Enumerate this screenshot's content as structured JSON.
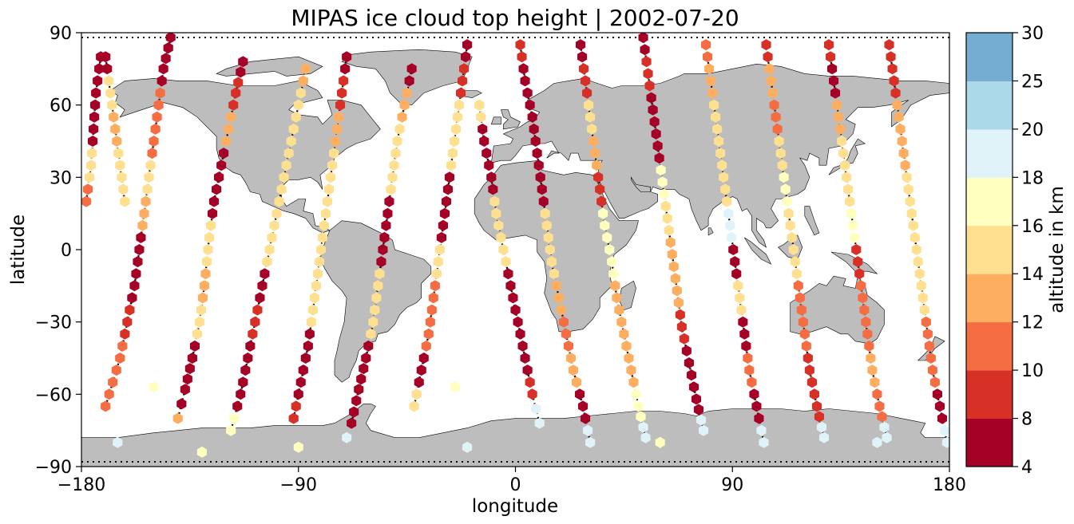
{
  "chart_data": {
    "type": "scatter",
    "title": "MIPAS ice cloud top height | 2002-07-20",
    "xlabel": "longitude",
    "ylabel": "latitude",
    "xlim": [
      -180,
      180
    ],
    "ylim": [
      -90,
      90
    ],
    "xticks": [
      "−180",
      "−90",
      "0",
      "90",
      "180"
    ],
    "yticks": [
      "90",
      "60",
      "30",
      "0",
      "−30",
      "−60",
      "−90"
    ],
    "grid": false,
    "marker": "hexagon",
    "colorbar": {
      "label": "altitude in km",
      "bounds": [
        4,
        8,
        10,
        12,
        14,
        16,
        18,
        20,
        25,
        30
      ],
      "tick_labels": [
        "4",
        "8",
        "10",
        "12",
        "14",
        "16",
        "18",
        "20",
        "25",
        "30"
      ],
      "colors": [
        "#a50026",
        "#d73027",
        "#f46d43",
        "#fdae61",
        "#fee090",
        "#ffffbf",
        "#e0f3f8",
        "#abd9e9",
        "#74add1",
        "#4575b4",
        "#313695"
      ]
    },
    "land_color": "#bdbdbd",
    "ground_track_color": "#000000",
    "tracks": [
      {
        "ascending": true,
        "points": [
          [
            -170,
            -65,
            11
          ],
          [
            -167,
            -55,
            11
          ],
          [
            -164,
            -45,
            11
          ],
          [
            -161,
            -30,
            9
          ],
          [
            -158,
            -15,
            7
          ],
          [
            -156,
            0,
            7
          ],
          [
            -154,
            15,
            13
          ],
          [
            -152,
            30,
            14
          ],
          [
            -150,
            45,
            11
          ],
          [
            -148,
            60,
            11
          ],
          [
            -146,
            75,
            7
          ],
          [
            -143,
            88,
            7
          ]
        ]
      },
      {
        "ascending": true,
        "points": [
          [
            -140,
            -70,
            13
          ],
          [
            -137,
            -58,
            7
          ],
          [
            -134,
            -45,
            7
          ],
          [
            -131,
            -30,
            14
          ],
          [
            -129,
            -15,
            13
          ],
          [
            -127,
            5,
            15
          ],
          [
            -125,
            20,
            7
          ],
          [
            -122,
            35,
            7
          ],
          [
            -119,
            50,
            12
          ],
          [
            -116,
            65,
            9
          ],
          [
            -113,
            78,
            7
          ]
        ]
      },
      {
        "ascending": true,
        "points": [
          [
            -118,
            -75,
            17
          ],
          [
            -114,
            -60,
            7
          ],
          [
            -111,
            -45,
            7
          ],
          [
            -108,
            -30,
            8
          ],
          [
            -105,
            -15,
            7
          ],
          [
            -102,
            0,
            15
          ],
          [
            -99,
            15,
            15
          ],
          [
            -96,
            30,
            14
          ],
          [
            -93,
            45,
            15
          ],
          [
            -90,
            60,
            14
          ],
          [
            -87,
            75,
            13
          ]
        ]
      },
      {
        "ascending": true,
        "points": [
          [
            -92,
            -70,
            9
          ],
          [
            -89,
            -55,
            7
          ],
          [
            -86,
            -40,
            7
          ],
          [
            -84,
            -25,
            15
          ],
          [
            -82,
            -10,
            15
          ],
          [
            -80,
            5,
            14
          ],
          [
            -78,
            20,
            15
          ],
          [
            -76,
            35,
            15
          ],
          [
            -74,
            50,
            13
          ],
          [
            -72,
            65,
            9
          ],
          [
            -70,
            80,
            7
          ]
        ]
      },
      {
        "ascending": true,
        "points": [
          [
            -68,
            -72,
            7
          ],
          [
            -65,
            -58,
            7
          ],
          [
            -62,
            -45,
            7
          ],
          [
            -59,
            -30,
            15
          ],
          [
            -57,
            -15,
            15
          ],
          [
            -55,
            0,
            7
          ],
          [
            -53,
            15,
            7
          ],
          [
            -51,
            30,
            14
          ],
          [
            -49,
            45,
            15
          ],
          [
            -46,
            60,
            12
          ],
          [
            -43,
            75,
            7
          ]
        ]
      },
      {
        "ascending": true,
        "points": [
          [
            -42,
            -65,
            14
          ],
          [
            -39,
            -50,
            7
          ],
          [
            -36,
            -35,
            11
          ],
          [
            -34,
            -20,
            11
          ],
          [
            -32,
            -5,
            14
          ],
          [
            -30,
            10,
            7
          ],
          [
            -28,
            25,
            7
          ],
          [
            -26,
            40,
            14
          ],
          [
            -24,
            55,
            15
          ],
          [
            -22,
            70,
            9
          ],
          [
            -20,
            85,
            7
          ]
        ]
      },
      {
        "ascending": false,
        "points": [
          [
            -15,
            60,
            15
          ],
          [
            -13,
            45,
            7
          ],
          [
            -10,
            30,
            7
          ],
          [
            -8,
            15,
            15
          ],
          [
            -5,
            0,
            14
          ],
          [
            -2,
            -15,
            7
          ],
          [
            1,
            -30,
            7
          ],
          [
            4,
            -45,
            7
          ],
          [
            7,
            -60,
            9
          ],
          [
            10,
            -72,
            18
          ]
        ]
      },
      {
        "ascending": false,
        "points": [
          [
            2,
            85,
            9
          ],
          [
            4,
            70,
            7
          ],
          [
            7,
            55,
            7
          ],
          [
            9,
            40,
            7
          ],
          [
            11,
            25,
            7
          ],
          [
            13,
            10,
            15
          ],
          [
            15,
            -5,
            15
          ],
          [
            18,
            -20,
            13
          ],
          [
            21,
            -35,
            11
          ],
          [
            24,
            -50,
            12
          ],
          [
            28,
            -65,
            7
          ],
          [
            31,
            -80,
            18
          ]
        ]
      },
      {
        "ascending": false,
        "points": [
          [
            27,
            85,
            7
          ],
          [
            29,
            70,
            9
          ],
          [
            31,
            55,
            14
          ],
          [
            33,
            40,
            13
          ],
          [
            35,
            25,
            9
          ],
          [
            37,
            10,
            17
          ],
          [
            40,
            -5,
            17
          ],
          [
            42,
            -20,
            12
          ],
          [
            45,
            -35,
            13
          ],
          [
            48,
            -50,
            13
          ],
          [
            51,
            -65,
            16
          ],
          [
            54,
            -78,
            18
          ]
        ]
      },
      {
        "ascending": false,
        "points": [
          [
            53,
            88,
            7
          ],
          [
            55,
            73,
            9
          ],
          [
            57,
            58,
            7
          ],
          [
            59,
            43,
            7
          ],
          [
            61,
            28,
            16
          ],
          [
            63,
            13,
            15
          ],
          [
            65,
            -2,
            12
          ],
          [
            67,
            -17,
            13
          ],
          [
            69,
            -32,
            9
          ],
          [
            72,
            -47,
            7
          ],
          [
            75,
            -62,
            7
          ],
          [
            78,
            -75,
            18
          ]
        ]
      },
      {
        "ascending": false,
        "points": [
          [
            79,
            85,
            11
          ],
          [
            81,
            70,
            12
          ],
          [
            83,
            55,
            14
          ],
          [
            85,
            40,
            14
          ],
          [
            87,
            25,
            15
          ],
          [
            89,
            10,
            18
          ],
          [
            91,
            -5,
            7
          ],
          [
            93,
            -20,
            15
          ],
          [
            95,
            -35,
            7
          ],
          [
            97,
            -50,
            11
          ],
          [
            100,
            -65,
            7
          ],
          [
            103,
            -80,
            18
          ]
        ]
      },
      {
        "ascending": false,
        "points": [
          [
            104,
            85,
            9
          ],
          [
            106,
            70,
            12
          ],
          [
            108,
            55,
            11
          ],
          [
            110,
            40,
            15
          ],
          [
            112,
            25,
            16
          ],
          [
            114,
            10,
            15
          ],
          [
            116,
            -5,
            14
          ],
          [
            118,
            -20,
            11
          ],
          [
            120,
            -35,
            11
          ],
          [
            122,
            -50,
            9
          ],
          [
            125,
            -65,
            9
          ],
          [
            128,
            -78,
            18
          ]
        ]
      },
      {
        "ascending": false,
        "points": [
          [
            130,
            85,
            8
          ],
          [
            132,
            70,
            7
          ],
          [
            134,
            55,
            13
          ],
          [
            136,
            40,
            15
          ],
          [
            138,
            25,
            15
          ],
          [
            140,
            10,
            17
          ],
          [
            142,
            -5,
            9
          ],
          [
            144,
            -20,
            11
          ],
          [
            146,
            -35,
            10
          ],
          [
            148,
            -50,
            12
          ],
          [
            151,
            -65,
            11
          ],
          [
            154,
            -78,
            18
          ]
        ]
      },
      {
        "ascending": false,
        "points": [
          [
            155,
            85,
            9
          ],
          [
            157,
            70,
            8
          ],
          [
            159,
            55,
            12
          ],
          [
            161,
            40,
            13
          ],
          [
            163,
            25,
            14
          ],
          [
            165,
            10,
            15
          ],
          [
            167,
            -5,
            14
          ],
          [
            169,
            -20,
            15
          ],
          [
            171,
            -35,
            11
          ],
          [
            173,
            -50,
            11
          ],
          [
            176,
            -65,
            7
          ],
          [
            179,
            -80,
            18
          ]
        ]
      },
      {
        "ascending": true,
        "points": [
          [
            -178,
            20,
            11
          ],
          [
            -176,
            35,
            15
          ],
          [
            -175,
            50,
            7
          ],
          [
            -174,
            65,
            7
          ],
          [
            -172,
            80,
            7
          ]
        ]
      },
      {
        "ascending": false,
        "points": [
          [
            -170,
            80,
            7
          ],
          [
            -168,
            65,
            14
          ],
          [
            -166,
            50,
            12
          ],
          [
            -164,
            35,
            14
          ],
          [
            -162,
            20,
            15
          ]
        ]
      }
    ],
    "extra_points": [
      [
        -150,
        -57,
        17
      ],
      [
        -25,
        -57,
        17
      ],
      [
        -165,
        -80,
        18
      ],
      [
        -90,
        -82,
        17
      ],
      [
        -130,
        -84,
        17
      ],
      [
        60,
        -80,
        17
      ],
      [
        150,
        -80,
        18
      ],
      [
        -70,
        -78,
        18
      ],
      [
        -20,
        -82,
        18
      ]
    ]
  }
}
